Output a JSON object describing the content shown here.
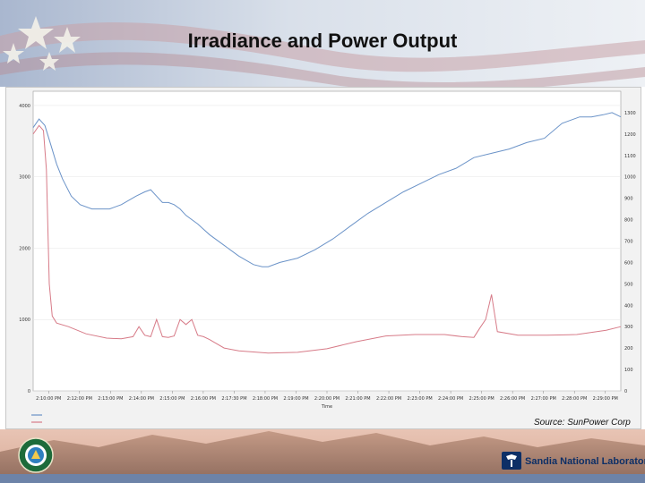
{
  "title": "Irradiance and Power Output",
  "source_note": "Source: SunPower Corp",
  "footer": {
    "sandia_name": "Sandia National Laboratories"
  },
  "colors": {
    "irradiance": "#6b93c8",
    "power": "#d77b88",
    "title": "#111111"
  },
  "chart_data": {
    "type": "line",
    "xlabel": "Time",
    "x_ticks": [
      "2:10:00 PM",
      "2:12:00 PM",
      "2:13:00 PM",
      "2:14:00 PM",
      "2:15:00 PM",
      "2:16:00 PM",
      "2:17:30 PM",
      "2:18:00 PM",
      "2:19:00 PM",
      "2:20:00 PM",
      "2:21:00 PM",
      "2:22:00 PM",
      "2:23:00 PM",
      "2:24:00 PM",
      "2:25:00 PM",
      "2:26:00 PM",
      "2:27:00 PM",
      "2:28:00 PM",
      "2:29:00 PM"
    ],
    "x_range": [
      0,
      20
    ],
    "left_axis": {
      "range": [
        0,
        4200
      ],
      "ticks": [
        "0",
        "1000",
        "2000",
        "3000",
        "4000"
      ]
    },
    "right_axis": {
      "range": [
        0,
        1400
      ],
      "ticks": [
        "0",
        "100",
        "200",
        "300",
        "400",
        "500",
        "600",
        "700",
        "800",
        "900",
        "1000",
        "1100",
        "1200",
        "1300"
      ]
    },
    "series": [
      {
        "axis": "right",
        "x": [
          0,
          0.2,
          0.4,
          0.6,
          0.8,
          1.0,
          1.3,
          1.6,
          2.0,
          2.6,
          3.0,
          3.5,
          3.8,
          4.0,
          4.2,
          4.4,
          4.6,
          4.8,
          5.0,
          5.2,
          5.6,
          6.0,
          6.5,
          7.0,
          7.5,
          7.8,
          8.0,
          8.4,
          9.0,
          9.6,
          10.2,
          10.8,
          11.4,
          12.0,
          12.6,
          13.2,
          13.8,
          14.4,
          15.0,
          15.6,
          16.2,
          16.8,
          17.4,
          18.0,
          18.6,
          19.0,
          19.4,
          19.7,
          20.0
        ],
        "y": [
          1230,
          1270,
          1240,
          1150,
          1060,
          990,
          910,
          870,
          850,
          850,
          870,
          910,
          930,
          940,
          910,
          880,
          880,
          870,
          850,
          820,
          780,
          730,
          680,
          630,
          590,
          580,
          580,
          600,
          620,
          660,
          710,
          770,
          830,
          880,
          930,
          970,
          1010,
          1040,
          1090,
          1110,
          1130,
          1160,
          1180,
          1250,
          1280,
          1280,
          1290,
          1300,
          1280
        ]
      },
      {
        "axis": "left",
        "x": [
          0,
          0.2,
          0.35,
          0.45,
          0.55,
          0.65,
          0.8,
          1.2,
          1.8,
          2.5,
          3.0,
          3.4,
          3.6,
          3.8,
          4.0,
          4.2,
          4.4,
          4.6,
          4.8,
          5.0,
          5.2,
          5.4,
          5.6,
          5.8,
          6.0,
          6.5,
          7.0,
          8.0,
          9.0,
          10.0,
          11.0,
          12.0,
          13.0,
          14.0,
          14.6,
          15.0,
          15.2,
          15.4,
          15.6,
          15.8,
          16.5,
          17.5,
          18.5,
          19.5,
          20.0
        ],
        "y": [
          3600,
          3720,
          3650,
          3100,
          1500,
          1050,
          950,
          900,
          800,
          740,
          730,
          760,
          900,
          780,
          760,
          1000,
          760,
          750,
          770,
          1000,
          930,
          1000,
          780,
          760,
          720,
          600,
          560,
          530,
          540,
          590,
          690,
          770,
          790,
          790,
          760,
          750,
          880,
          1000,
          1350,
          830,
          780,
          780,
          790,
          850,
          900
        ]
      }
    ]
  }
}
